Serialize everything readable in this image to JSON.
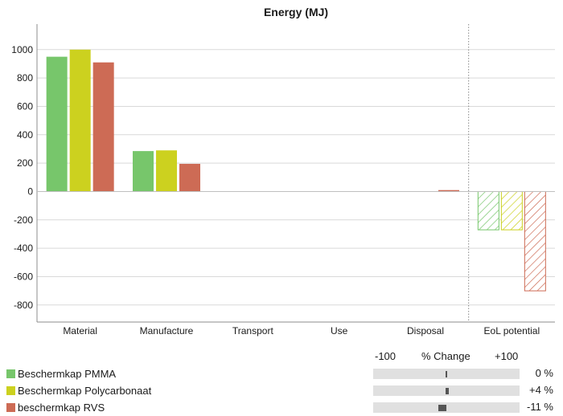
{
  "chart_data": {
    "type": "bar",
    "title": "Energy (MJ)",
    "categories": [
      "Material",
      "Manufacture",
      "Transport",
      "Use",
      "Disposal",
      "EoL potential"
    ],
    "series": [
      {
        "name": "Beschermkap PMMA",
        "color": "#77c66b",
        "hatch_last": true,
        "values": [
          950,
          285,
          0,
          0,
          0,
          -270
        ]
      },
      {
        "name": "Beschermkap Polycarbonaat",
        "color": "#ccd11f",
        "hatch_last": true,
        "values": [
          1000,
          290,
          0,
          0,
          0,
          -270
        ]
      },
      {
        "name": "beschermkap RVS",
        "color": "#cd6b55",
        "hatch_last": true,
        "values": [
          910,
          195,
          0,
          0,
          10,
          -700
        ]
      }
    ],
    "yticks": [
      1000,
      800,
      600,
      400,
      200,
      0,
      -200,
      -400,
      -600,
      -800
    ],
    "ylim": [
      -920,
      1180
    ],
    "grid": true,
    "separator_before": "EoL potential"
  },
  "change_panel": {
    "min_label": "-100",
    "header": "% Change",
    "max_label": "+100",
    "items": [
      {
        "name": "Beschermkap PMMA",
        "percent": 0,
        "label": "0 %"
      },
      {
        "name": "Beschermkap Polycarbonaat",
        "percent": 4,
        "label": "+4 %"
      },
      {
        "name": "beschermkap RVS",
        "percent": -11,
        "label": "-11 %"
      }
    ]
  }
}
